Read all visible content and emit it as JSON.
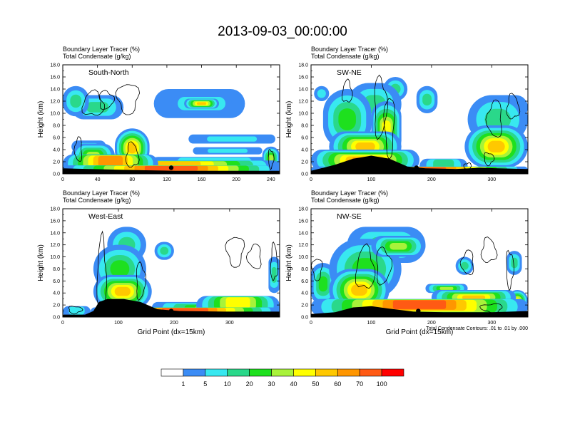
{
  "figure": {
    "title": "2013-09-03_00:00:00",
    "footnote": "Total Condensate Contours: .01 to .01 by .000"
  },
  "colorbar": {
    "levels": [
      "1",
      "5",
      "10",
      "20",
      "30",
      "40",
      "50",
      "60",
      "70",
      "100"
    ],
    "colors": [
      "#ffffff",
      "#3b8cf5",
      "#38e8f0",
      "#2ad88a",
      "#1ee01e",
      "#a8f23a",
      "#ffff00",
      "#ffc800",
      "#ff9600",
      "#ff5a14",
      "#ff0000"
    ]
  },
  "chart_data": [
    {
      "type": "heatmap",
      "panel": "top-left",
      "title_line1": "Boundary Layer Tracer   (%)",
      "title_line2": "Total Condensate   (g/kg)",
      "label": "South-North",
      "ylabel": "Height (km)",
      "xlabel": "",
      "xlim": [
        0,
        250
      ],
      "ylim": [
        0,
        18
      ],
      "xticks": [
        0,
        40,
        80,
        120,
        160,
        200,
        240
      ],
      "yticks": [
        "0.0",
        "2.0",
        "4.0",
        "6.0",
        "8.0",
        "10.0",
        "12.0",
        "14.0",
        "16.0",
        "18.0"
      ],
      "marker": {
        "x": 125,
        "y": 1.0
      },
      "terrain": [
        [
          0,
          0.9
        ],
        [
          30,
          0.8
        ],
        [
          60,
          0.7
        ],
        [
          90,
          0.6
        ],
        [
          130,
          0.5
        ],
        [
          180,
          0.5
        ],
        [
          250,
          0.5
        ]
      ],
      "blobs": [
        {
          "x": [
            0,
            250
          ],
          "y": [
            0,
            1.4
          ],
          "v": 80
        },
        {
          "x": [
            0,
            250
          ],
          "y": [
            0,
            2.2
          ],
          "v": 55
        },
        {
          "x": [
            0,
            110
          ],
          "y": [
            0,
            3.2
          ],
          "v": 60
        },
        {
          "x": [
            60,
            100
          ],
          "y": [
            1,
            7.5
          ],
          "v": 50
        },
        {
          "x": [
            10,
            60
          ],
          "y": [
            1,
            5
          ],
          "v": 35
        },
        {
          "x": [
            230,
            250
          ],
          "y": [
            0.5,
            4.5
          ],
          "v": 30
        },
        {
          "x": [
            100,
            250
          ],
          "y": [
            0,
            2.8
          ],
          "v": 8
        },
        {
          "x": [
            0,
            30
          ],
          "y": [
            9.5,
            14.5
          ],
          "v": 15
        },
        {
          "x": [
            10,
            70
          ],
          "y": [
            9,
            13
          ],
          "v": 10
        },
        {
          "x": [
            105,
            210
          ],
          "y": [
            9.2,
            14
          ],
          "v": 8
        },
        {
          "x": [
            125,
            195
          ],
          "y": [
            10.2,
            13
          ],
          "v": 25
        },
        {
          "x": [
            140,
            180
          ],
          "y": [
            10.8,
            12.4
          ],
          "v": 55
        },
        {
          "x": [
            145,
            245
          ],
          "y": [
            5,
            6.5
          ],
          "v": 6
        },
        {
          "x": [
            150,
            230
          ],
          "y": [
            3.2,
            4.4
          ],
          "v": 8
        },
        {
          "x": [
            10,
            50
          ],
          "y": [
            3.5,
            5.5
          ],
          "v": 8
        }
      ],
      "contours": [
        {
          "cx": 35,
          "cy": 11.5,
          "rx": 12,
          "ry": 2
        },
        {
          "cx": 50,
          "cy": 12.2,
          "rx": 8,
          "ry": 1.5
        },
        {
          "cx": 75,
          "cy": 12.5,
          "rx": 12,
          "ry": 2.5
        },
        {
          "cx": 18,
          "cy": 4,
          "rx": 4,
          "ry": 2
        },
        {
          "cx": 80,
          "cy": 3,
          "rx": 7,
          "ry": 2
        },
        {
          "cx": 240,
          "cy": 2.5,
          "rx": 3,
          "ry": 1.5
        }
      ]
    },
    {
      "type": "heatmap",
      "panel": "top-right",
      "title_line1": "Boundary Layer Tracer   (%)",
      "title_line2": "Total Condensate   (g/kg)",
      "label": "SW-NE",
      "ylabel": "Height (km)",
      "xlabel": "",
      "xlim": [
        0,
        360
      ],
      "ylim": [
        0,
        18
      ],
      "xticks": [
        0,
        100,
        200,
        300
      ],
      "yticks": [
        "0.0",
        "2.0",
        "4.0",
        "6.0",
        "8.0",
        "10.0",
        "12.0",
        "14.0",
        "16.0",
        "18.0"
      ],
      "marker": {
        "x": 175,
        "y": 1.0
      },
      "terrain": [
        [
          0,
          0.5
        ],
        [
          40,
          1.5
        ],
        [
          70,
          2.5
        ],
        [
          100,
          3.0
        ],
        [
          130,
          2.5
        ],
        [
          160,
          1.2
        ],
        [
          190,
          0.9
        ],
        [
          240,
          0.8
        ],
        [
          280,
          1.0
        ],
        [
          310,
          0.9
        ],
        [
          360,
          0.8
        ]
      ],
      "blobs": [
        {
          "x": [
            0,
            360
          ],
          "y": [
            0,
            1.2
          ],
          "v": 75
        },
        {
          "x": [
            0,
            180
          ],
          "y": [
            0.5,
            4
          ],
          "v": 65
        },
        {
          "x": [
            30,
            150
          ],
          "y": [
            2,
            7
          ],
          "v": 55
        },
        {
          "x": [
            100,
            150
          ],
          "y": [
            3,
            12
          ],
          "v": 45
        },
        {
          "x": [
            20,
            100
          ],
          "y": [
            4,
            14
          ],
          "v": 22
        },
        {
          "x": [
            60,
            150
          ],
          "y": [
            8,
            15
          ],
          "v": 18
        },
        {
          "x": [
            180,
            260
          ],
          "y": [
            0,
            2.5
          ],
          "v": 12
        },
        {
          "x": [
            255,
            360
          ],
          "y": [
            1,
            8
          ],
          "v": 50
        },
        {
          "x": [
            260,
            360
          ],
          "y": [
            5,
            13
          ],
          "v": 18
        },
        {
          "x": [
            290,
            360
          ],
          "y": [
            9,
            13
          ],
          "v": 12
        },
        {
          "x": [
            175,
            210
          ],
          "y": [
            10,
            14.5
          ],
          "v": 12
        },
        {
          "x": [
            120,
            160
          ],
          "y": [
            12,
            16
          ],
          "v": 10
        },
        {
          "x": [
            5,
            30
          ],
          "y": [
            12,
            14.5
          ],
          "v": 8
        }
      ],
      "contours": [
        {
          "cx": 60,
          "cy": 13.5,
          "rx": 8,
          "ry": 1.8
        },
        {
          "cx": 115,
          "cy": 11,
          "rx": 10,
          "ry": 5
        },
        {
          "cx": 130,
          "cy": 8,
          "rx": 8,
          "ry": 5
        },
        {
          "cx": 305,
          "cy": 9,
          "rx": 12,
          "ry": 3
        },
        {
          "cx": 335,
          "cy": 11,
          "rx": 10,
          "ry": 2
        },
        {
          "cx": 295,
          "cy": 2.5,
          "rx": 8,
          "ry": 1
        },
        {
          "cx": 260,
          "cy": 1.2,
          "rx": 6,
          "ry": 0.6
        }
      ]
    },
    {
      "type": "heatmap",
      "panel": "bottom-left",
      "title_line1": "Boundary Layer Tracer   (%)",
      "title_line2": "Total Condensate   (g/kg)",
      "label": "West-East",
      "ylabel": "Height (km)",
      "xlabel": "Grid Point (dx=15km)",
      "xlim": [
        0,
        390
      ],
      "ylim": [
        0,
        18
      ],
      "xticks": [
        0,
        100,
        200,
        300
      ],
      "yticks": [
        "0.0",
        "2.0",
        "4.0",
        "6.0",
        "8.0",
        "10.0",
        "12.0",
        "14.0",
        "16.0",
        "18.0"
      ],
      "marker": {
        "x": 195,
        "y": 1.0
      },
      "terrain": [
        [
          0,
          0.4
        ],
        [
          40,
          0.4
        ],
        [
          55,
          1.0
        ],
        [
          65,
          2.5
        ],
        [
          80,
          3.0
        ],
        [
          110,
          3.0
        ],
        [
          140,
          2.5
        ],
        [
          170,
          1.3
        ],
        [
          210,
          1.0
        ],
        [
          290,
          0.9
        ],
        [
          390,
          0.9
        ]
      ],
      "blobs": [
        {
          "x": [
            0,
            50
          ],
          "y": [
            0,
            1.8
          ],
          "v": 8
        },
        {
          "x": [
            50,
            390
          ],
          "y": [
            0.2,
            1.6
          ],
          "v": 70
        },
        {
          "x": [
            55,
            160
          ],
          "y": [
            1.5,
            7
          ],
          "v": 55
        },
        {
          "x": [
            55,
            150
          ],
          "y": [
            4,
            12
          ],
          "v": 25
        },
        {
          "x": [
            80,
            150
          ],
          "y": [
            9,
            15
          ],
          "v": 15
        },
        {
          "x": [
            160,
            390
          ],
          "y": [
            0.5,
            2.5
          ],
          "v": 30
        },
        {
          "x": [
            240,
            390
          ],
          "y": [
            0.3,
            3.5
          ],
          "v": 45
        },
        {
          "x": [
            165,
            200
          ],
          "y": [
            9.5,
            12.5
          ],
          "v": 12
        },
        {
          "x": [
            370,
            390
          ],
          "y": [
            4,
            10
          ],
          "v": 12
        }
      ],
      "contours": [
        {
          "cx": 70,
          "cy": 7,
          "rx": 8,
          "ry": 6
        },
        {
          "cx": 140,
          "cy": 6,
          "rx": 8,
          "ry": 3
        },
        {
          "cx": 310,
          "cy": 11,
          "rx": 15,
          "ry": 2.5
        },
        {
          "cx": 345,
          "cy": 10,
          "rx": 12,
          "ry": 2
        },
        {
          "cx": 380,
          "cy": 9,
          "rx": 6,
          "ry": 3
        },
        {
          "cx": 22,
          "cy": 1.2,
          "rx": 12,
          "ry": 0.6
        }
      ]
    },
    {
      "type": "heatmap",
      "panel": "bottom-right",
      "title_line1": "Boundary Layer Tracer   (%)",
      "title_line2": "Total Condensate   (g/kg)",
      "label": "NW-SE",
      "ylabel": "Height (km)",
      "xlabel": "Grid Point (dx=15km)",
      "xlim": [
        0,
        360
      ],
      "ylim": [
        0,
        18
      ],
      "xticks": [
        0,
        100,
        200,
        300
      ],
      "yticks": [
        "0.0",
        "2.0",
        "4.0",
        "6.0",
        "8.0",
        "10.0",
        "12.0",
        "14.0",
        "16.0",
        "18.0"
      ],
      "marker": {
        "x": 178,
        "y": 1.0
      },
      "terrain": [
        [
          0,
          0.5
        ],
        [
          40,
          0.8
        ],
        [
          70,
          1.6
        ],
        [
          100,
          1.8
        ],
        [
          130,
          1.4
        ],
        [
          170,
          0.9
        ],
        [
          220,
          0.8
        ],
        [
          300,
          0.8
        ],
        [
          360,
          1.0
        ]
      ],
      "blobs": [
        {
          "x": [
            0,
            360
          ],
          "y": [
            0.3,
            3
          ],
          "v": 70
        },
        {
          "x": [
            30,
            130
          ],
          "y": [
            1,
            8
          ],
          "v": 55
        },
        {
          "x": [
            30,
            150
          ],
          "y": [
            3,
            13
          ],
          "v": 25
        },
        {
          "x": [
            60,
            190
          ],
          "y": [
            9,
            15
          ],
          "v": 14
        },
        {
          "x": [
            100,
            190
          ],
          "y": [
            10,
            13.5
          ],
          "v": 35
        },
        {
          "x": [
            0,
            40
          ],
          "y": [
            2,
            9
          ],
          "v": 20
        },
        {
          "x": [
            200,
            340
          ],
          "y": [
            2,
            4.5
          ],
          "v": 55
        },
        {
          "x": [
            190,
            260
          ],
          "y": [
            4,
            5.5
          ],
          "v": 30
        },
        {
          "x": [
            325,
            360
          ],
          "y": [
            1,
            4.5
          ],
          "v": 40
        },
        {
          "x": [
            240,
            270
          ],
          "y": [
            7,
            10
          ],
          "v": 10
        },
        {
          "x": [
            325,
            350
          ],
          "y": [
            7,
            11
          ],
          "v": 10
        }
      ],
      "contours": [
        {
          "cx": 90,
          "cy": 8,
          "rx": 15,
          "ry": 3.5
        },
        {
          "cx": 120,
          "cy": 8.5,
          "rx": 12,
          "ry": 3
        },
        {
          "cx": 10,
          "cy": 8,
          "rx": 8,
          "ry": 1.8
        },
        {
          "cx": 260,
          "cy": 9,
          "rx": 10,
          "ry": 2
        },
        {
          "cx": 295,
          "cy": 11,
          "rx": 12,
          "ry": 2
        },
        {
          "cx": 330,
          "cy": 8,
          "rx": 6,
          "ry": 3
        },
        {
          "cx": 300,
          "cy": 1.5,
          "rx": 18,
          "ry": 0.7
        }
      ]
    }
  ]
}
